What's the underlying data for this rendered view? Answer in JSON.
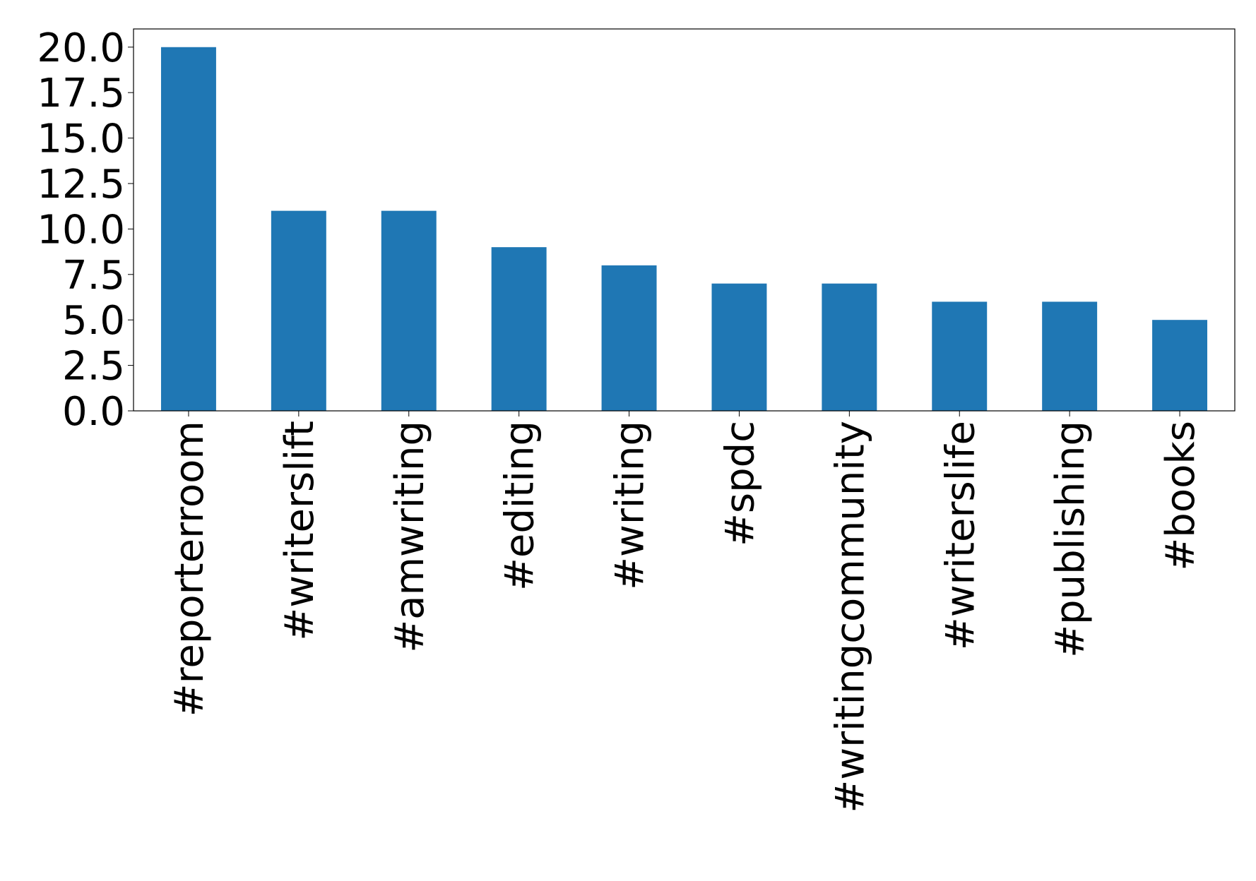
{
  "chart_data": {
    "type": "bar",
    "categories": [
      "#reporterroom",
      "#writerslift",
      "#amwriting",
      "#editing",
      "#writing",
      "#spdc",
      "#writingcommunity",
      "#writerslife",
      "#publishing",
      "#books"
    ],
    "values": [
      20,
      11,
      11,
      9,
      8,
      7,
      7,
      6,
      6,
      5
    ],
    "color": "#1f77b4",
    "ylim": [
      0,
      21
    ],
    "yticks": [
      {
        "value": 0,
        "label": "0.0"
      },
      {
        "value": 2.5,
        "label": "2.5"
      },
      {
        "value": 5,
        "label": "5.0"
      },
      {
        "value": 7.5,
        "label": "7.5"
      },
      {
        "value": 10,
        "label": "10.0"
      },
      {
        "value": 12.5,
        "label": "12.5"
      },
      {
        "value": 15,
        "label": "15.0"
      },
      {
        "value": 17.5,
        "label": "17.5"
      },
      {
        "value": 20,
        "label": "20.0"
      }
    ],
    "grid": false
  }
}
